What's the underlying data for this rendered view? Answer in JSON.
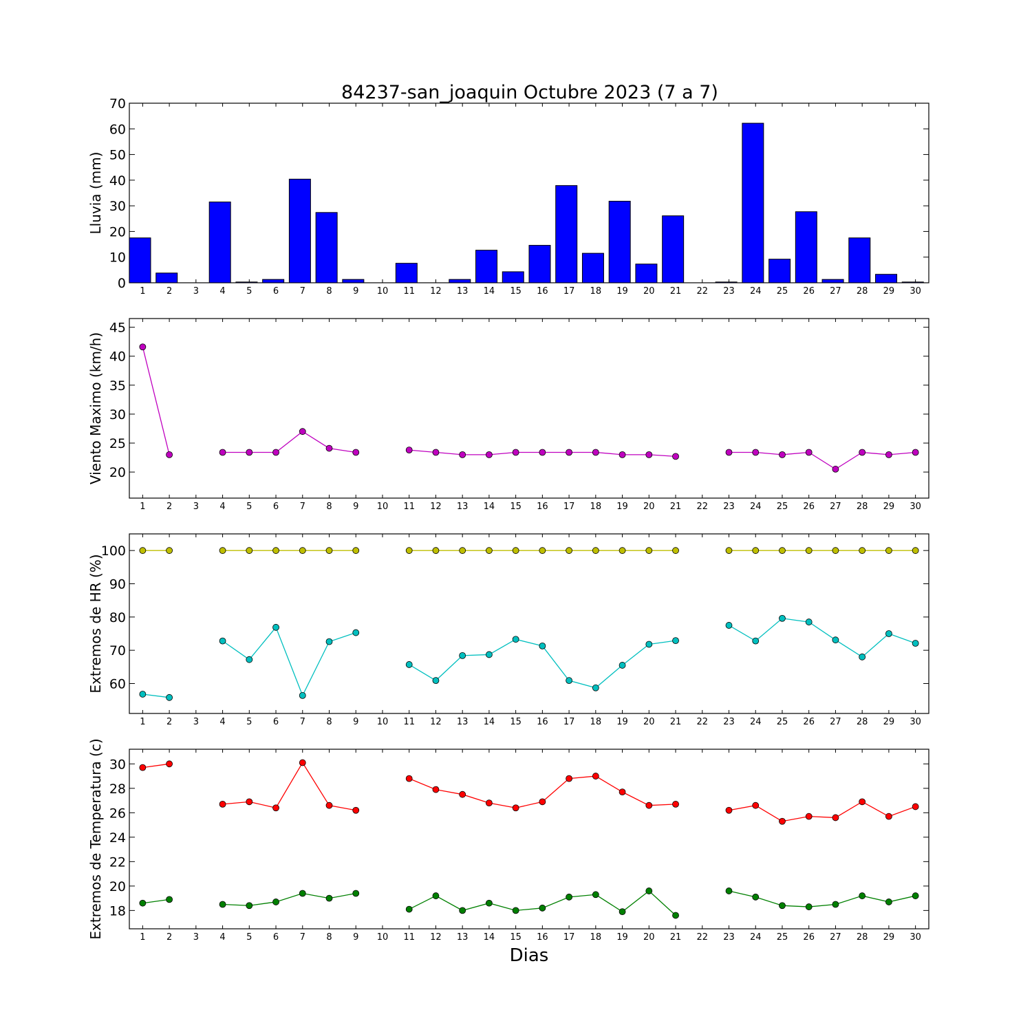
{
  "title": "84237-san_joaquin Octubre 2023  (7 a 7)",
  "xlabel": "Dias",
  "chart_data": [
    {
      "type": "bar",
      "ylabel": "Lluvia (mm)",
      "ylim": [
        0,
        70
      ],
      "yticks": [
        0,
        10,
        20,
        30,
        40,
        50,
        60,
        70
      ],
      "color": "#0000ff",
      "categories": [
        1,
        2,
        3,
        4,
        5,
        6,
        7,
        8,
        9,
        10,
        11,
        12,
        13,
        14,
        15,
        16,
        17,
        18,
        19,
        20,
        21,
        22,
        23,
        24,
        25,
        26,
        27,
        28,
        29,
        30
      ],
      "values": [
        17.5,
        3.8,
        0,
        31.5,
        0.3,
        1.3,
        40.4,
        27.4,
        1.3,
        0,
        7.6,
        0,
        1.3,
        12.7,
        4.3,
        14.6,
        37.9,
        11.5,
        31.8,
        7.3,
        26.1,
        0,
        0.3,
        62.2,
        9.2,
        27.7,
        1.3,
        17.5,
        3.3,
        0.3
      ]
    },
    {
      "type": "line",
      "ylabel": "Viento Maximo (km/h)",
      "ylim": [
        15.5,
        46.5
      ],
      "yticks": [
        20,
        25,
        30,
        35,
        40,
        45
      ],
      "series": [
        {
          "color": "#bf00bf",
          "values": [
            41.6,
            23.0,
            null,
            23.4,
            23.4,
            23.4,
            27.0,
            24.1,
            23.4,
            null,
            23.8,
            23.4,
            23.0,
            23.0,
            23.4,
            23.4,
            23.4,
            23.4,
            23.0,
            23.0,
            22.7,
            null,
            23.4,
            23.4,
            23.0,
            23.4,
            20.5,
            23.4,
            23.0,
            23.4
          ]
        }
      ]
    },
    {
      "type": "line",
      "ylabel": "Extremos de HR (%)",
      "ylim": [
        51,
        105
      ],
      "yticks": [
        60,
        70,
        80,
        90,
        100
      ],
      "series": [
        {
          "color": "#bfbf00",
          "values": [
            100,
            100,
            null,
            100,
            100,
            100,
            100,
            100,
            100,
            null,
            100,
            100,
            100,
            100,
            100,
            100,
            100,
            100,
            100,
            100,
            100,
            null,
            100,
            100,
            100,
            100,
            100,
            100,
            100,
            100
          ]
        },
        {
          "color": "#00bfbf",
          "values": [
            56.8,
            55.8,
            null,
            72.8,
            67.2,
            76.9,
            56.4,
            72.6,
            75.3,
            null,
            65.7,
            60.9,
            68.4,
            68.7,
            73.3,
            71.3,
            60.9,
            58.7,
            65.5,
            71.8,
            72.9,
            null,
            77.5,
            72.8,
            79.6,
            78.5,
            73.1,
            68.0,
            75.0,
            72.1
          ]
        }
      ]
    },
    {
      "type": "line",
      "ylabel": "Extremos de Temperatura (c)",
      "ylim": [
        16.5,
        31.2
      ],
      "yticks": [
        18,
        20,
        22,
        24,
        26,
        28,
        30
      ],
      "series": [
        {
          "color": "#ff0000",
          "values": [
            29.7,
            30.0,
            null,
            26.7,
            26.9,
            26.4,
            30.1,
            26.6,
            26.2,
            null,
            28.8,
            27.9,
            27.5,
            26.8,
            26.4,
            26.9,
            28.8,
            29.0,
            27.7,
            26.6,
            26.7,
            null,
            26.2,
            26.6,
            25.3,
            25.7,
            25.6,
            26.9,
            25.7,
            26.5
          ]
        },
        {
          "color": "#008000",
          "values": [
            18.6,
            18.9,
            null,
            18.5,
            18.4,
            18.7,
            19.4,
            19.0,
            19.4,
            null,
            18.1,
            19.2,
            18.0,
            18.6,
            18.0,
            18.2,
            19.1,
            19.3,
            17.9,
            19.6,
            17.6,
            null,
            19.6,
            19.1,
            18.4,
            18.3,
            18.5,
            19.2,
            18.7,
            19.2
          ]
        }
      ]
    }
  ]
}
